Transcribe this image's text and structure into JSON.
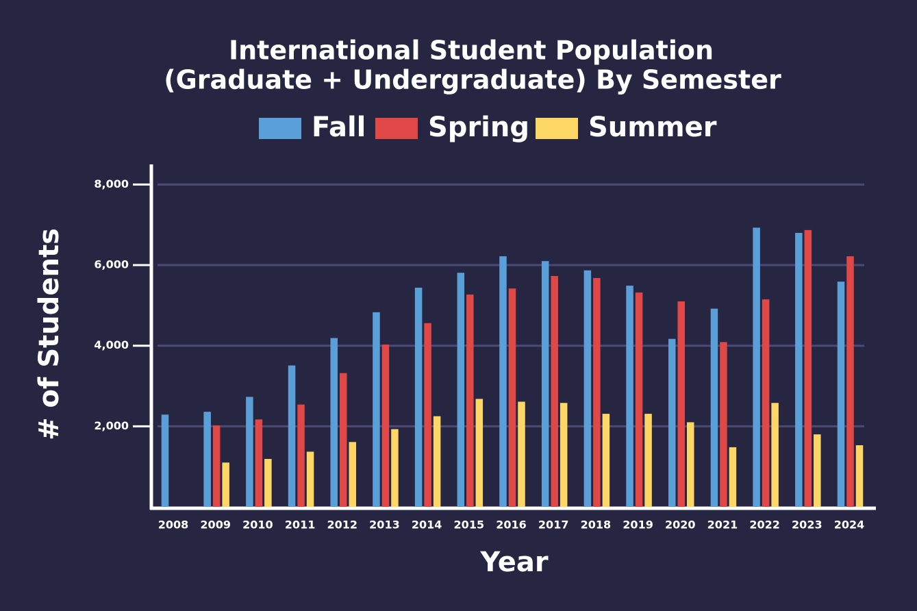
{
  "chart_data": {
    "type": "bar",
    "title": [
      "International Student Population",
      "(Graduate + Undergraduate) By Semester"
    ],
    "x_label": "Year",
    "y_label": "# of Students",
    "categories": [
      "2008",
      "2009",
      "2010",
      "2011",
      "2012",
      "2013",
      "2014",
      "2015",
      "2016",
      "2017",
      "2018",
      "2019",
      "2020",
      "2021",
      "2022",
      "2023",
      "2024"
    ],
    "series": [
      {
        "name": "Fall",
        "color": "#5b9fd9",
        "values": [
          2290,
          2360,
          2730,
          3510,
          4190,
          4830,
          5440,
          5810,
          6220,
          6100,
          5870,
          5490,
          4170,
          4920,
          6930,
          6800,
          5590
        ]
      },
      {
        "name": "Spring",
        "color": "#e04747",
        "values": [
          null,
          2020,
          2170,
          2540,
          3320,
          4030,
          4560,
          5270,
          5420,
          5730,
          5680,
          5320,
          5100,
          4090,
          5150,
          6870,
          6220
        ]
      },
      {
        "name": "Summer",
        "color": "#fdd765",
        "values": [
          null,
          1100,
          1190,
          1370,
          1610,
          1930,
          2250,
          2680,
          2610,
          2580,
          2310,
          2310,
          2100,
          1480,
          2580,
          1800,
          1530
        ]
      }
    ],
    "ylim": [
      0,
      8500
    ],
    "yticks": [
      {
        "value": 2000,
        "label": "2,000"
      },
      {
        "value": 4000,
        "label": "4,000"
      },
      {
        "value": 6000,
        "label": "6,000"
      },
      {
        "value": 8000,
        "label": "8,000"
      }
    ],
    "grid": true,
    "legend": "top"
  }
}
